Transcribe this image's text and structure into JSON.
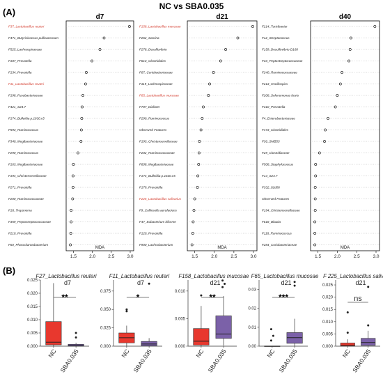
{
  "figure": {
    "title": "NC vs SBA0.035",
    "panel_a_tag": "(A)",
    "panel_b_tag": "(B)"
  },
  "chart_data": [
    {
      "type": "scatter",
      "panel": "A-d7",
      "title": "d7",
      "xlabel": "MDA",
      "xlim": [
        1.4,
        3.0
      ],
      "xticks": [
        "1.5",
        "2.0",
        "2.5",
        "3.0"
      ],
      "highlight_color": "#d33a2c",
      "features": [
        {
          "label": "F37_Lactobacillus reuteri",
          "value": 2.98,
          "highlight": true
        },
        {
          "label": "F471_Butyricicoccus pullicaecorum",
          "value": 2.31,
          "highlight": false
        },
        {
          "label": "F525_Lachnospiraceae",
          "value": 2.2,
          "highlight": false
        },
        {
          "label": "F187_Prevotella",
          "value": 1.99,
          "highlight": false
        },
        {
          "label": "F134_Prevotella",
          "value": 1.84,
          "highlight": false
        },
        {
          "label": "F11_Lactobacillus reuteri",
          "value": 1.82,
          "highlight": true
        },
        {
          "label": "F198_Fusobacteriaceae",
          "value": 1.75,
          "highlight": false
        },
        {
          "label": "F421_S24.7",
          "value": 1.73,
          "highlight": false
        },
        {
          "label": "F174_Bulleidia p.1630.c5",
          "value": 1.72,
          "highlight": false
        },
        {
          "label": "F593_Ruminococcus",
          "value": 1.71,
          "highlight": false
        },
        {
          "label": "F340_Mogibacteriaceae",
          "value": 1.7,
          "highlight": false
        },
        {
          "label": "F290_Ruminococcus",
          "value": 1.62,
          "highlight": false
        },
        {
          "label": "F163_Mogibacteriaceae",
          "value": 1.5,
          "highlight": false
        },
        {
          "label": "F194_Christensenellaceae",
          "value": 1.49,
          "highlight": false
        },
        {
          "label": "F271_Prevotella",
          "value": 1.49,
          "highlight": false
        },
        {
          "label": "F200_Ruminococcaceae",
          "value": 1.48,
          "highlight": false
        },
        {
          "label": "F18_Treponema",
          "value": 1.44,
          "highlight": false
        },
        {
          "label": "F359_Peptostreptococcaceae",
          "value": 1.44,
          "highlight": false
        },
        {
          "label": "F210_Prevotella",
          "value": 1.43,
          "highlight": false
        },
        {
          "label": "F60_Phascolarctobacterium",
          "value": 1.42,
          "highlight": false
        }
      ]
    },
    {
      "type": "scatter",
      "panel": "A-d21",
      "title": "d21",
      "xlabel": "MDA",
      "xlim": [
        1.4,
        3.0
      ],
      "xticks": [
        "1.5",
        "2.0",
        "2.5",
        "3.0"
      ],
      "highlight_color": "#d33a2c",
      "features": [
        {
          "label": "F158_Lactobacillus mucosae",
          "value": 2.98,
          "highlight": true
        },
        {
          "label": "F262_Sarcina",
          "value": 2.6,
          "highlight": false
        },
        {
          "label": "F278_Desulfovibrio",
          "value": 2.29,
          "highlight": false
        },
        {
          "label": "F613_Clostridiales",
          "value": 2.16,
          "highlight": false
        },
        {
          "label": "F67_Coriobacteriaceae",
          "value": 1.98,
          "highlight": false
        },
        {
          "label": "F119_Lachnospiraceae",
          "value": 1.88,
          "highlight": false
        },
        {
          "label": "F65_Lactobacillus mucosae",
          "value": 1.85,
          "highlight": true
        },
        {
          "label": "F707_Dialister",
          "value": 1.72,
          "highlight": false
        },
        {
          "label": "F290_Ruminococcus",
          "value": 1.69,
          "highlight": false
        },
        {
          "label": "Observed Features",
          "value": 1.66,
          "highlight": false
        },
        {
          "label": "F193_Christensenellaceae",
          "value": 1.62,
          "highlight": false
        },
        {
          "label": "F202_Ruminococcaceae",
          "value": 1.61,
          "highlight": false
        },
        {
          "label": "F608_Mogibacteriaceae",
          "value": 1.6,
          "highlight": false
        },
        {
          "label": "F174_Bulleidia p.1630.c5",
          "value": 1.58,
          "highlight": false
        },
        {
          "label": "F179_Prevotella",
          "value": 1.57,
          "highlight": false
        },
        {
          "label": "F225_Lactobacillus salivarius",
          "value": 1.5,
          "highlight": true
        },
        {
          "label": "F9_Collinsella aerofaciens",
          "value": 1.48,
          "highlight": false
        },
        {
          "label": "F47_Eubacterium biforme",
          "value": 1.46,
          "highlight": false
        },
        {
          "label": "F120_Prevotella",
          "value": 1.45,
          "highlight": false
        },
        {
          "label": "F900_Lachnobacterium",
          "value": 1.43,
          "highlight": false
        }
      ]
    },
    {
      "type": "scatter",
      "panel": "A-d40",
      "title": "d40",
      "xlabel": "MDA",
      "xlim": [
        1.4,
        3.0
      ],
      "xticks": [
        "1.5",
        "2.0",
        "2.5",
        "3.0"
      ],
      "highlight_color": "#d33a2c",
      "features": [
        {
          "label": "F214_Turicibacter",
          "value": 2.97,
          "highlight": false
        },
        {
          "label": "F12_Streptococcus",
          "value": 2.35,
          "highlight": false
        },
        {
          "label": "F159_Desulfovibrio D168",
          "value": 2.33,
          "highlight": false
        },
        {
          "label": "F33_Peptostreptococcaceae",
          "value": 2.3,
          "highlight": false
        },
        {
          "label": "F240_Ruminococcaceae",
          "value": 2.12,
          "highlight": false
        },
        {
          "label": "F213_Oscillospira",
          "value": 2.08,
          "highlight": false
        },
        {
          "label": "F208_Selenomonas bovis",
          "value": 2.0,
          "highlight": false
        },
        {
          "label": "F310_Prevotella",
          "value": 1.95,
          "highlight": false
        },
        {
          "label": "F4_Enterobacteriaceae",
          "value": 1.76,
          "highlight": false
        },
        {
          "label": "F473_Clostridiales",
          "value": 1.69,
          "highlight": false
        },
        {
          "label": "F36_SMB53",
          "value": 1.67,
          "highlight": false
        },
        {
          "label": "F29_Clostridiaceae",
          "value": 1.54,
          "highlight": false
        },
        {
          "label": "F508_Staphylococcus",
          "value": 1.44,
          "highlight": false
        },
        {
          "label": "F14_S24.7",
          "value": 1.44,
          "highlight": false
        },
        {
          "label": "F332_02d06",
          "value": 1.43,
          "highlight": false
        },
        {
          "label": "Observed Features",
          "value": 1.43,
          "highlight": false
        },
        {
          "label": "F194_Christensenellaceae",
          "value": 1.43,
          "highlight": false
        },
        {
          "label": "F618_Blautia",
          "value": 1.42,
          "highlight": false
        },
        {
          "label": "F118_Ruminococcus",
          "value": 1.42,
          "highlight": false
        },
        {
          "label": "F284_Coriobacteriaceae",
          "value": 1.42,
          "highlight": false
        }
      ]
    },
    {
      "type": "box",
      "panel": "B1",
      "title": "F27_Lactobacillus reuteri",
      "subtitle": "d7",
      "categories": [
        "NC",
        "SBA0.035"
      ],
      "colors": [
        "#e8382e",
        "#7b61a8"
      ],
      "ylim": [
        0,
        0.025
      ],
      "yticks": [
        "0.000",
        "0.005",
        "0.010",
        "0.015",
        "0.020",
        "0.025"
      ],
      "significance": "**",
      "boxes": [
        {
          "min": 0,
          "q1": 0.0005,
          "median": 0.0015,
          "q3": 0.0093,
          "max": 0.0238,
          "outliers": []
        },
        {
          "min": 0,
          "q1": 0,
          "median": 0.0002,
          "q3": 0.0007,
          "max": 0.0013,
          "outliers": [
            0.005,
            0.0033
          ]
        }
      ]
    },
    {
      "type": "box",
      "panel": "B2",
      "title": "F11_Lactobacillus reuteri",
      "subtitle": "d7",
      "categories": [
        "NC",
        "SBA0.035"
      ],
      "colors": [
        "#e8382e",
        "#7b61a8"
      ],
      "ylim": [
        0,
        0.09
      ],
      "yticks": [
        "0.000",
        "0.025",
        "0.050",
        "0.075"
      ],
      "significance": "*",
      "boxes": [
        {
          "min": 0,
          "q1": 0.0045,
          "median": 0.0115,
          "q3": 0.018,
          "max": 0.028,
          "outliers": [
            0.05,
            0.0475
          ]
        },
        {
          "min": 0,
          "q1": 0.0005,
          "median": 0.003,
          "q3": 0.0065,
          "max": 0.011,
          "outliers": [
            0.085
          ]
        }
      ]
    },
    {
      "type": "box",
      "panel": "B3",
      "title": "F158_Lactobacillus mucosae",
      "subtitle": "d21",
      "categories": [
        "NC",
        "SBA0.035"
      ],
      "colors": [
        "#e8382e",
        "#7b61a8"
      ],
      "ylim": [
        0,
        0.012
      ],
      "yticks": [
        "0.000",
        "0.005",
        "0.010"
      ],
      "significance": "**",
      "boxes": [
        {
          "min": 0,
          "q1": 0.0002,
          "median": 0.0009,
          "q3": 0.0032,
          "max": 0.0073,
          "outliers": [
            0.0092
          ]
        },
        {
          "min": 0.0001,
          "q1": 0.0014,
          "median": 0.0022,
          "q3": 0.0055,
          "max": 0.0091,
          "outliers": [
            0.0107,
            0.0113,
            0.0119
          ]
        }
      ]
    },
    {
      "type": "box",
      "panel": "B4",
      "title": "F65_Lactobacillus mucosae",
      "subtitle": "d21",
      "categories": [
        "NC",
        "SBA0.035"
      ],
      "colors": [
        "#e8382e",
        "#7b61a8"
      ],
      "ylim": [
        0,
        0.035
      ],
      "yticks": [
        "0.00",
        "0.01",
        "0.02",
        "0.03"
      ],
      "significance": "***",
      "boxes": [
        {
          "min": 0,
          "q1": 0,
          "median": 0,
          "q3": 0.0001,
          "max": 0.0002,
          "outliers": [
            0.009,
            0.0055,
            0.003
          ]
        },
        {
          "min": 0,
          "q1": 0.0015,
          "median": 0.0045,
          "q3": 0.0072,
          "max": 0.0145,
          "outliers": [
            0.032,
            0.034
          ]
        }
      ]
    },
    {
      "type": "box",
      "panel": "B5",
      "title": "F 225_Lactobacillus salivarius",
      "subtitle": "d21",
      "categories": [
        "NC",
        "SBA0.035"
      ],
      "colors": [
        "#e8382e",
        "#7b61a8"
      ],
      "ylim": [
        0,
        0.027
      ],
      "yticks": [
        "0.000",
        "0.005",
        "0.010",
        "0.015",
        "0.020",
        "0.025"
      ],
      "significance": "ns",
      "boxes": [
        {
          "min": 0,
          "q1": 0,
          "median": 0.0004,
          "q3": 0.0013,
          "max": 0.0028,
          "outliers": [
            0.0138,
            0.0055
          ]
        },
        {
          "min": 0,
          "q1": 0.0003,
          "median": 0.0015,
          "q3": 0.0032,
          "max": 0.0063,
          "outliers": [
            0.0242,
            0.0085
          ]
        }
      ]
    }
  ]
}
